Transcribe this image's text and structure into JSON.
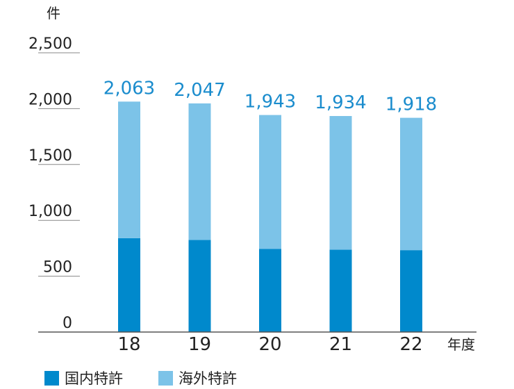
{
  "chart_data": {
    "type": "bar",
    "stacked": true,
    "categories": [
      "18",
      "19",
      "20",
      "21",
      "22"
    ],
    "series": [
      {
        "name": "国内特許",
        "values": [
          840,
          825,
          745,
          738,
          733
        ],
        "color": "#0089cc"
      },
      {
        "name": "海外特許",
        "values": [
          1223,
          1222,
          1198,
          1196,
          1185
        ],
        "color": "#7cc3e8"
      }
    ],
    "totals": [
      2063,
      2047,
      1943,
      1934,
      1918
    ],
    "total_labels": [
      "2,063",
      "2,047",
      "1,943",
      "1,934",
      "1,918"
    ],
    "total_label_color": "#1a8ccd",
    "y_unit_label": "件",
    "x_unit_label": "年度",
    "ylim": [
      0,
      2500
    ],
    "yticks": [
      0,
      500,
      1000,
      1500,
      2000,
      2500
    ],
    "ytick_labels": [
      "0",
      "500",
      "1,000",
      "1,500",
      "2,000",
      "2,500"
    ],
    "gridlines": true,
    "legend_position": "bottom-left",
    "axis_color": "#555555",
    "grid_color": "#888888"
  }
}
